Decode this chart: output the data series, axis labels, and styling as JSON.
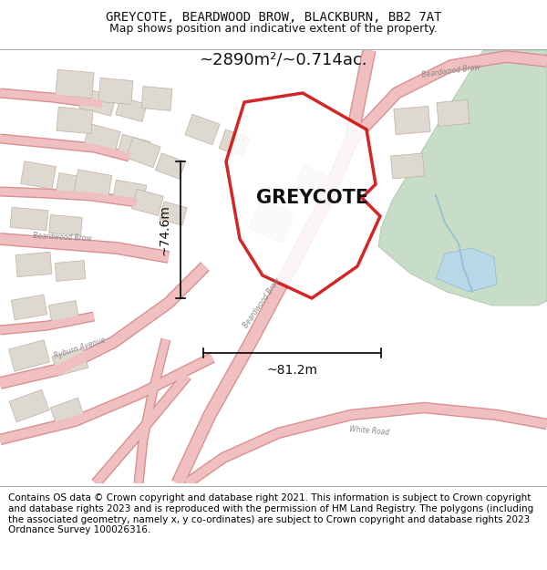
{
  "title_line1": "GREYCOTE, BEARDWOOD BROW, BLACKBURN, BB2 7AT",
  "title_line2": "Map shows position and indicative extent of the property.",
  "property_label": "GREYCOTE",
  "area_label": "~2890m²/~0.714ac.",
  "dim_vertical": "~74.6m",
  "dim_horizontal": "~81.2m",
  "footer_text": "Contains OS data © Crown copyright and database right 2021. This information is subject to Crown copyright and database rights 2023 and is reproduced with the permission of HM Land Registry. The polygons (including the associated geometry, namely x, y co-ordinates) are subject to Crown copyright and database rights 2023 Ordnance Survey 100026316.",
  "map_bg": "#f5f0ea",
  "property_outline": "#cc0000",
  "green_area_color": "#c8ddc8",
  "header_bg": "#ffffff",
  "footer_bg": "#ffffff",
  "title_fontsize": 10,
  "subtitle_fontsize": 9,
  "area_fontsize": 13,
  "dim_fontsize": 10,
  "footer_fontsize": 7.5
}
